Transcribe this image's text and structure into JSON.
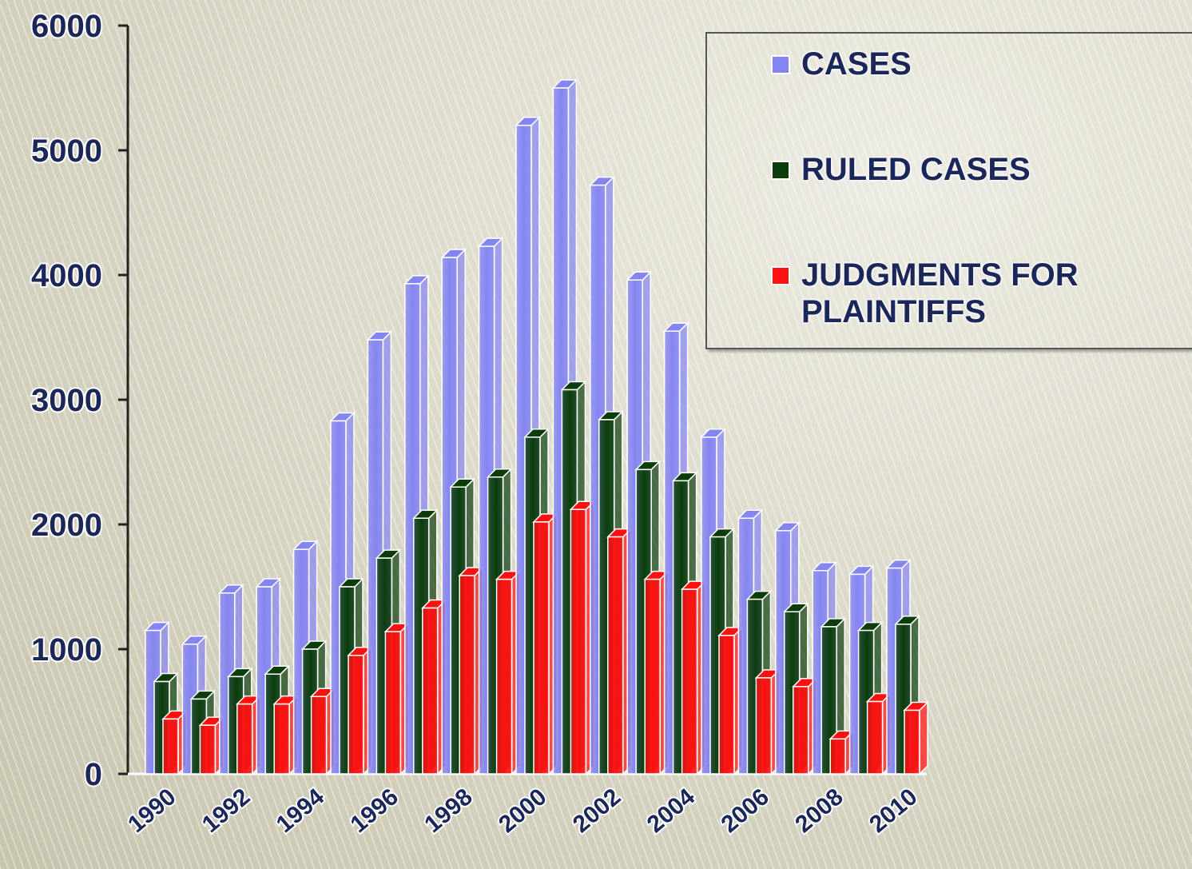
{
  "chart_data": {
    "type": "bar3d",
    "categories": [
      "1990",
      null,
      "1992",
      null,
      "1994",
      null,
      "1996",
      null,
      "1998",
      null,
      "2000",
      null,
      "2002",
      null,
      "2004",
      null,
      "2006",
      null,
      "2008",
      null,
      "2010"
    ],
    "series": [
      {
        "name": "CASES",
        "color": "#8585f2",
        "values": [
          1150,
          1040,
          1450,
          1500,
          1800,
          2830,
          3480,
          3930,
          4140,
          4230,
          5200,
          5500,
          4720,
          3960,
          3550,
          2700,
          2050,
          1950,
          1630,
          1600,
          1650
        ]
      },
      {
        "name": "RULED CASES",
        "color": "#0b3d0b",
        "values": [
          740,
          600,
          780,
          800,
          1000,
          1500,
          1730,
          2050,
          2300,
          2380,
          2700,
          3080,
          2840,
          2440,
          2350,
          1900,
          1400,
          1300,
          1180,
          1150,
          1200
        ]
      },
      {
        "name": "JUDGMENTS FOR PLAINTIFFS",
        "color": "#ff1010",
        "values": [
          440,
          390,
          560,
          560,
          620,
          950,
          1140,
          1330,
          1590,
          1560,
          2020,
          2120,
          1900,
          1560,
          1480,
          1110,
          770,
          700,
          280,
          580,
          510
        ]
      }
    ],
    "ylim": [
      0,
      6000
    ],
    "yticks": [
      0,
      1000,
      2000,
      3000,
      4000,
      5000,
      6000
    ],
    "legend": "upper right"
  }
}
